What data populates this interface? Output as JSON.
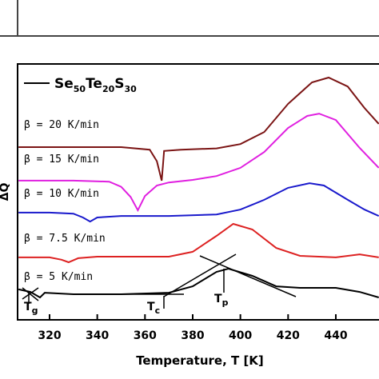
{
  "chart_data": {
    "type": "line",
    "xlabel": "Temperature, T  [K]",
    "ylabel": "ΔQ",
    "xlim": [
      306.6,
      458.1
    ],
    "xticks": [
      320,
      340,
      360,
      380,
      400,
      420,
      440
    ],
    "ylim": [
      0,
      100
    ],
    "legend_parts": [
      [
        "Se",
        "50"
      ],
      [
        "Te",
        "20"
      ],
      [
        "S",
        "30"
      ]
    ],
    "legend_color": "#000000",
    "annotations": [
      [
        "T",
        "g"
      ],
      [
        "T",
        "c"
      ],
      [
        "T",
        "p"
      ]
    ],
    "series": [
      {
        "name": "β = 20 K/min",
        "color": "#7b1414",
        "x": [
          307,
          330,
          350,
          362,
          365,
          367,
          367.5,
          368,
          375,
          390,
          400,
          410,
          420,
          430,
          437,
          445,
          452,
          458
        ],
        "values": [
          67.5,
          67.5,
          67.5,
          66.5,
          62,
          54.4,
          60,
          66,
          66.5,
          67,
          68.7,
          73.4,
          84.4,
          92.8,
          94.7,
          91.2,
          82.8,
          76.6
        ]
      },
      {
        "name": "β = 15 K/min",
        "color": "#e020e0",
        "x": [
          307,
          330,
          345,
          350,
          354,
          357,
          360,
          365,
          370,
          380,
          390,
          400,
          410,
          420,
          428,
          433,
          440,
          450,
          458
        ],
        "values": [
          54.4,
          54.4,
          54,
          52,
          48,
          42.8,
          48.4,
          52.5,
          53.7,
          54.7,
          56.2,
          59.4,
          65.6,
          75,
          79.7,
          80.6,
          78.1,
          67.2,
          59.4
        ]
      },
      {
        "name": "β = 10 K/min",
        "color": "#1a1acc",
        "x": [
          307,
          320,
          330,
          334,
          337,
          340,
          350,
          370,
          390,
          400,
          410,
          420,
          429,
          435,
          445,
          452,
          458
        ],
        "values": [
          41.9,
          41.9,
          41.5,
          40,
          38.4,
          40,
          40.6,
          40.6,
          41.2,
          43.1,
          46.9,
          51.6,
          53.4,
          52.5,
          46.9,
          43.1,
          40.6
        ]
      },
      {
        "name": "β = 7.5 K/min",
        "color": "#dd2222",
        "x": [
          307,
          320,
          325,
          328,
          332,
          340,
          370,
          380,
          390,
          397,
          405,
          415,
          425,
          440,
          450,
          458
        ],
        "values": [
          24.4,
          24.4,
          23.5,
          22.5,
          24.1,
          24.7,
          24.7,
          26.6,
          32.8,
          37.5,
          35.3,
          28.1,
          25,
          24.4,
          25.6,
          24.4
        ]
      },
      {
        "name": "β = 5 K/min",
        "color": "#000000",
        "x": [
          307,
          312,
          316,
          318,
          330,
          350,
          370,
          380,
          390,
          395,
          405,
          415,
          425,
          440,
          450,
          458
        ],
        "values": [
          11.9,
          10.9,
          8.75,
          10.6,
          10,
          10,
          10.6,
          13.1,
          18.75,
          20,
          17.2,
          13.1,
          12.5,
          12.5,
          10.9,
          8.75
        ]
      }
    ]
  }
}
